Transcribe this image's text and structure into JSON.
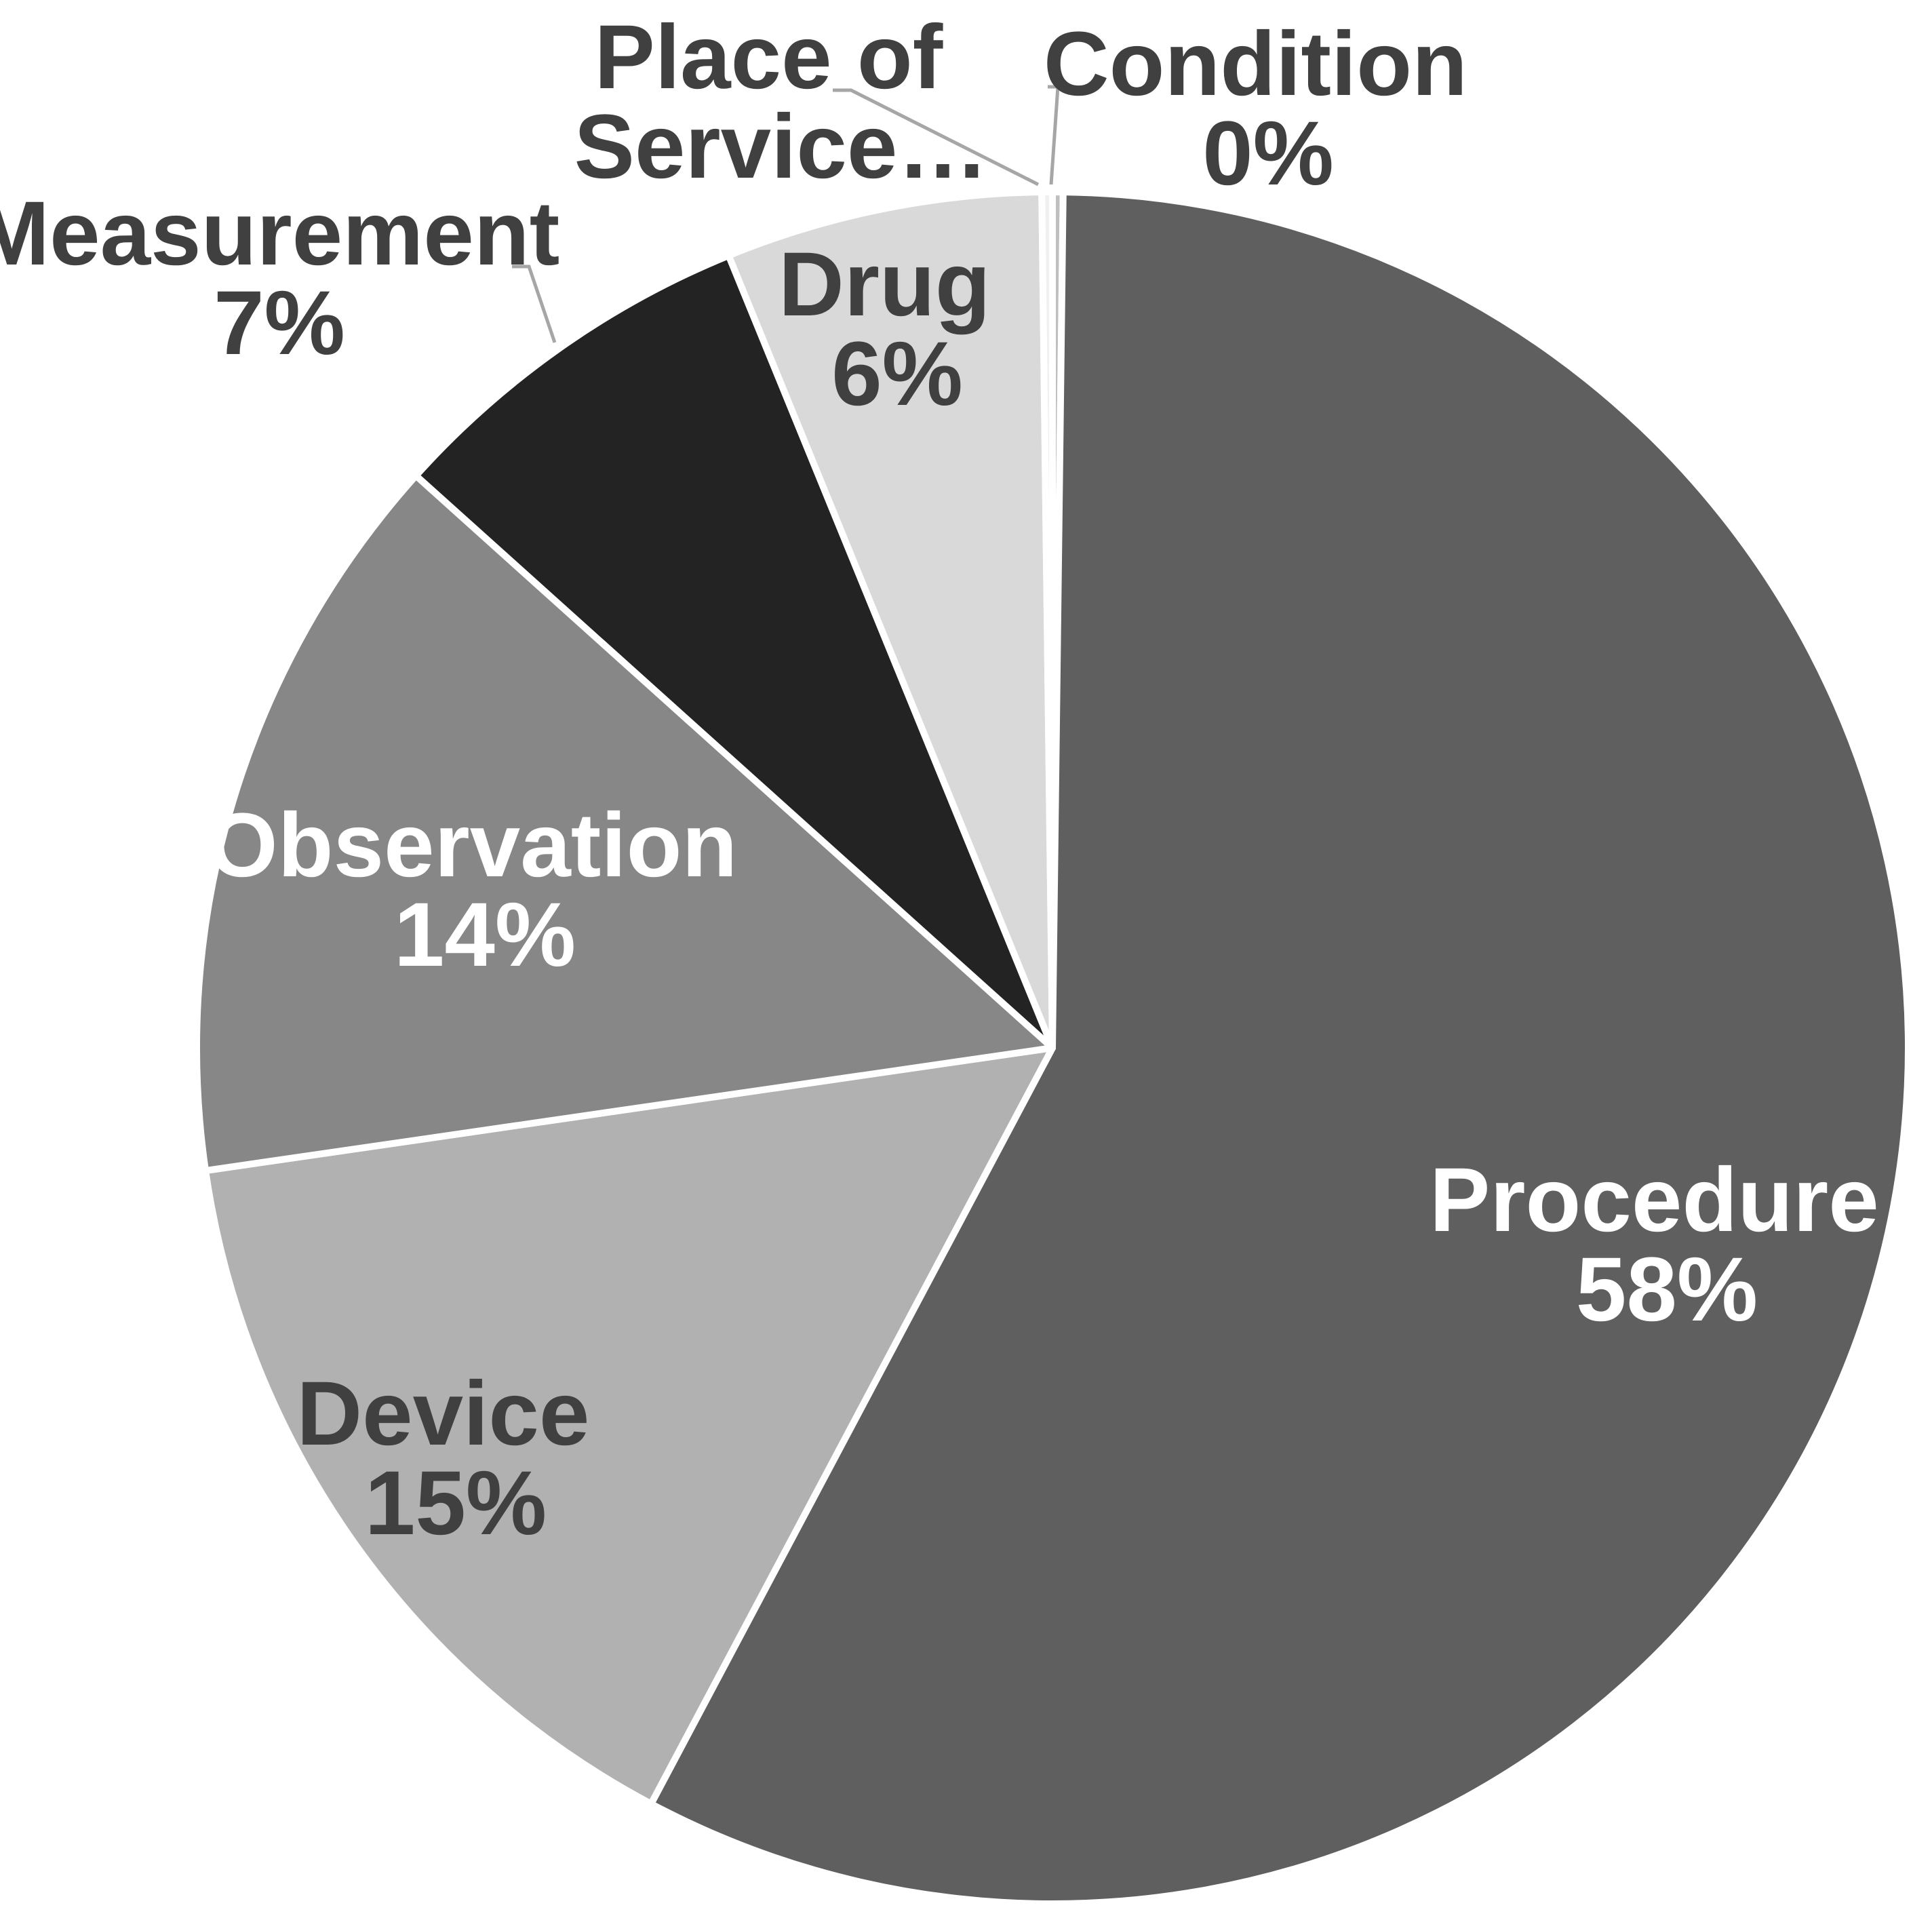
{
  "chart_data": {
    "type": "pie",
    "slices": [
      {
        "name": "Condition",
        "value": 0.2,
        "label_text": "0%",
        "color": "#bfbfbf",
        "label_color": "#404040"
      },
      {
        "name": "Procedure",
        "value": 57.8,
        "label_text": "58%",
        "color": "#5f5f5f",
        "label_color": "#ffffff"
      },
      {
        "name": "Device",
        "value": 15.0,
        "label_text": "15%",
        "color": "#b1b1b1",
        "label_color": "#404040"
      },
      {
        "name": "Observation",
        "value": 14.0,
        "label_text": "14%",
        "color": "#878787",
        "label_color": "#ffffff"
      },
      {
        "name": "Measurement",
        "value": 7.2,
        "label_text": "7%",
        "color": "#232323",
        "label_color": "#404040"
      },
      {
        "name": "Drug",
        "value": 6.0,
        "label_text": "6%",
        "color": "#d9d9d9",
        "label_color": "#404040"
      },
      {
        "name": "Place of Service…",
        "value": 0.2,
        "label_text": "0%",
        "color": "#f0f0f0",
        "label_color": "#404040"
      }
    ],
    "labels": {
      "condition": {
        "line1": "Condition",
        "line2": "0%"
      },
      "place_of_service": {
        "line1": "Place of",
        "line2": "Service…"
      },
      "measurement": {
        "line1": "Measurement",
        "line2": "7%"
      },
      "drug": {
        "line1": "Drug",
        "line2": "6%"
      },
      "observation": {
        "line1": "Observation",
        "line2": "14%"
      },
      "device": {
        "line1": "Device",
        "line2": "15%"
      },
      "procedure": {
        "line1": "Procedure",
        "line2": "58%"
      }
    },
    "start_angle_deg": 0,
    "direction": "clockwise",
    "legend": "none"
  }
}
